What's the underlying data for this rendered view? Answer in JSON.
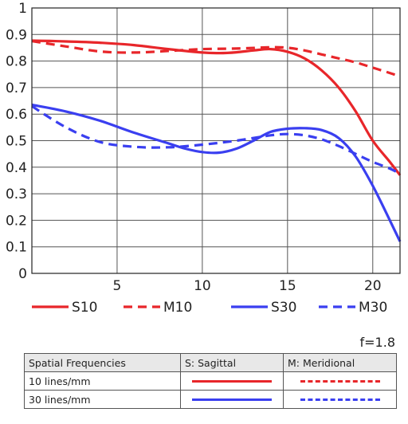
{
  "chart_data": {
    "type": "line",
    "title": "",
    "xlabel": "",
    "ylabel": "",
    "xlim": [
      0,
      21.6
    ],
    "ylim": [
      0,
      1
    ],
    "xticks": [
      5,
      10,
      15,
      20
    ],
    "xtick_labels": [
      "5",
      "10",
      "15",
      "20"
    ],
    "yticks": [
      0,
      0.1,
      0.2,
      0.3,
      0.4,
      0.5,
      0.6,
      0.7,
      0.8,
      0.9,
      1
    ],
    "ytick_labels": [
      "0",
      "0.1",
      "0.2",
      "0.3",
      "0.4",
      "0.5",
      "0.6",
      "0.7",
      "0.8",
      "0.9",
      "1"
    ],
    "grid": true,
    "legend_position": "bottom",
    "series": [
      {
        "name": "S10",
        "color": "#e8262a",
        "style": "solid",
        "x": [
          0,
          2,
          4,
          6,
          8,
          10,
          11,
          12,
          13,
          14,
          15,
          16,
          17,
          18,
          19,
          20,
          21,
          21.6
        ],
        "y": [
          0.877,
          0.874,
          0.869,
          0.86,
          0.845,
          0.832,
          0.83,
          0.833,
          0.84,
          0.845,
          0.835,
          0.81,
          0.765,
          0.7,
          0.61,
          0.5,
          0.42,
          0.37
        ]
      },
      {
        "name": "M10",
        "color": "#e8262a",
        "style": "dashed",
        "x": [
          0,
          2,
          4,
          6,
          8,
          10,
          12,
          14,
          15,
          16,
          17,
          18,
          19,
          20,
          21,
          21.6
        ],
        "y": [
          0.875,
          0.855,
          0.836,
          0.832,
          0.838,
          0.845,
          0.847,
          0.852,
          0.85,
          0.84,
          0.825,
          0.81,
          0.795,
          0.775,
          0.755,
          0.742
        ]
      },
      {
        "name": "S30",
        "color": "#3a3ff0",
        "style": "solid",
        "x": [
          0,
          2,
          4,
          6,
          8,
          9,
          10,
          11,
          12,
          13,
          14,
          15,
          16,
          17,
          18,
          19,
          20,
          21,
          21.6
        ],
        "y": [
          0.635,
          0.61,
          0.575,
          0.53,
          0.49,
          0.47,
          0.457,
          0.455,
          0.47,
          0.5,
          0.533,
          0.545,
          0.547,
          0.54,
          0.51,
          0.44,
          0.33,
          0.2,
          0.12
        ]
      },
      {
        "name": "M30",
        "color": "#3a3ff0",
        "style": "dashed",
        "x": [
          0,
          2,
          4,
          6,
          8,
          10,
          12,
          14,
          15,
          16,
          17,
          18,
          19,
          20,
          21,
          21.6
        ],
        "y": [
          0.63,
          0.55,
          0.495,
          0.477,
          0.475,
          0.485,
          0.5,
          0.52,
          0.525,
          0.52,
          0.505,
          0.48,
          0.45,
          0.42,
          0.395,
          0.375
        ]
      }
    ]
  },
  "aperture_label": "f=1.8",
  "table": {
    "headers": [
      "Spatial Frequencies",
      "S: Sagittal",
      "M: Meridional"
    ],
    "rows": [
      {
        "label": "10 lines/mm",
        "color": "#e8262a"
      },
      {
        "label": "30 lines/mm",
        "color": "#3a3ff0"
      }
    ]
  }
}
